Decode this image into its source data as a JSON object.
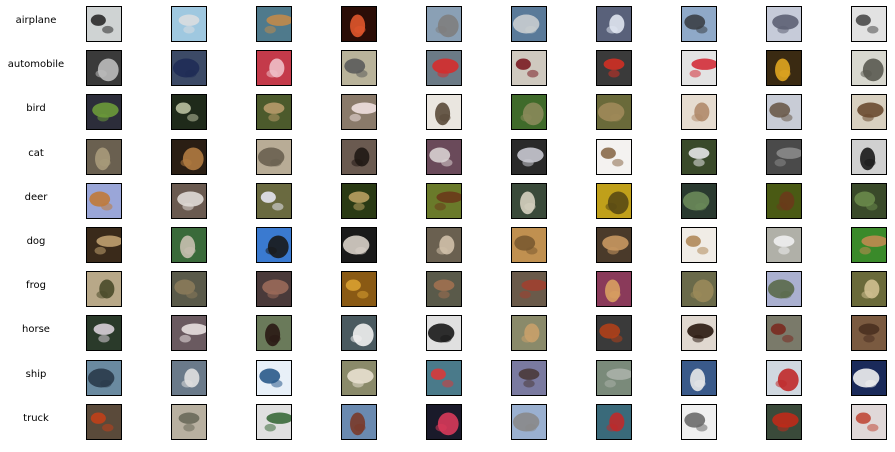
{
  "figure": {
    "classes": [
      {
        "label": "airplane",
        "palette": [
          [
            "#cfd3d3",
            "#2a2a2a"
          ],
          [
            "#9fc8e0",
            "#d9dde0"
          ],
          [
            "#4f7a8c",
            "#c08a4a"
          ],
          [
            "#2b0d07",
            "#e0562c"
          ],
          [
            "#8aa0b5",
            "#7e7e7e"
          ],
          [
            "#5a7a99",
            "#c9cdd0"
          ],
          [
            "#59617a",
            "#dfe6f0"
          ],
          [
            "#8fa9c8",
            "#3b3f46"
          ],
          [
            "#c6cbd9",
            "#5c6073"
          ],
          [
            "#e2e2e2",
            "#4a4a4a"
          ]
        ]
      },
      {
        "label": "automobile",
        "palette": [
          [
            "#3a3a3a",
            "#bdbdbd"
          ],
          [
            "#3c4a66",
            "#1f2c56"
          ],
          [
            "#c43a4a",
            "#f0c0c8"
          ],
          [
            "#b9b39a",
            "#5b5b5b"
          ],
          [
            "#6b7a86",
            "#d62c2c"
          ],
          [
            "#cfc9bf",
            "#7a1c24"
          ],
          [
            "#3a3a3a",
            "#d03025"
          ],
          [
            "#e3e3e3",
            "#d32e38"
          ],
          [
            "#3a2a12",
            "#e0a520"
          ],
          [
            "#d8d8cf",
            "#5a5a50"
          ]
        ]
      },
      {
        "label": "bird",
        "palette": [
          [
            "#2c2d3a",
            "#6b9a3a"
          ],
          [
            "#1f2a1a",
            "#b9c0a0"
          ],
          [
            "#4c5a2c",
            "#b89a6a"
          ],
          [
            "#8a7a6a",
            "#f0e0e0"
          ],
          [
            "#eae6e0",
            "#5a4a3a"
          ],
          [
            "#3f6a2a",
            "#8a8a5a"
          ],
          [
            "#6a6a3a",
            "#a08a5a"
          ],
          [
            "#e6dcd0",
            "#b08a6a"
          ],
          [
            "#c8ccd6",
            "#6a5a4a"
          ],
          [
            "#d8d0c0",
            "#6a4a30"
          ]
        ]
      },
      {
        "label": "cat",
        "palette": [
          [
            "#6a6050",
            "#a89a7a"
          ],
          [
            "#2a1e14",
            "#b07a40"
          ],
          [
            "#b8ac96",
            "#6a6050"
          ],
          [
            "#6a5a50",
            "#201814"
          ],
          [
            "#6a4a5a",
            "#d8d0d0"
          ],
          [
            "#2a2a2a",
            "#c8c8d0"
          ],
          [
            "#f4f2f0",
            "#8a6a4a"
          ],
          [
            "#3a4a2a",
            "#e6e6e6"
          ],
          [
            "#4a4a4a",
            "#8a8a8a"
          ],
          [
            "#d0d0d0",
            "#1a1a1a"
          ]
        ]
      },
      {
        "label": "deer",
        "palette": [
          [
            "#9aa6d8",
            "#c07a3a"
          ],
          [
            "#6a5a50",
            "#e0dad6"
          ],
          [
            "#6a6a40",
            "#e6e6f0"
          ],
          [
            "#2a3a14",
            "#b8a060"
          ],
          [
            "#6a7a2a",
            "#6a3a1a"
          ],
          [
            "#3a4a3a",
            "#d6d0c0"
          ],
          [
            "#c0a01a",
            "#5a4a14"
          ],
          [
            "#2a3a30",
            "#6a8a5a"
          ],
          [
            "#4a5a14",
            "#6a3a1a"
          ],
          [
            "#3a4a2a",
            "#6a8a4a"
          ]
        ]
      },
      {
        "label": "dog",
        "palette": [
          [
            "#3a2a1a",
            "#c0a070"
          ],
          [
            "#3a6a3a",
            "#c8c0b0"
          ],
          [
            "#3a7ad0",
            "#1a1a1a"
          ],
          [
            "#1a1a1a",
            "#d8d0c8"
          ],
          [
            "#6a6050",
            "#d0c0a8"
          ],
          [
            "#c09050",
            "#7a5a30"
          ],
          [
            "#4a3a2a",
            "#c89860"
          ],
          [
            "#f0ece6",
            "#b08a5a"
          ],
          [
            "#b0b0a8",
            "#f0f0f0"
          ],
          [
            "#3a8a2a",
            "#c08a50"
          ]
        ]
      },
      {
        "label": "frog",
        "palette": [
          [
            "#b8a888",
            "#4a4a2a"
          ],
          [
            "#5a5a4a",
            "#8a7a5a"
          ],
          [
            "#4a3a3a",
            "#9a6a5a"
          ],
          [
            "#8a5a14",
            "#d8a030"
          ],
          [
            "#5a5a4a",
            "#a07050"
          ],
          [
            "#6a5a4a",
            "#a04030"
          ],
          [
            "#8a3a5a",
            "#d8a060"
          ],
          [
            "#6a6a4a",
            "#9a8a5a"
          ],
          [
            "#aab0d0",
            "#5a6a4a"
          ],
          [
            "#6a6a3a",
            "#d0c090"
          ]
        ]
      },
      {
        "label": "horse",
        "palette": [
          [
            "#2a3a2a",
            "#d8d0d8"
          ],
          [
            "#6a5a60",
            "#e8e0e0"
          ],
          [
            "#6a7a5a",
            "#2a1a14"
          ],
          [
            "#4a5a60",
            "#f0f0f0"
          ],
          [
            "#e0e0e0",
            "#1a1a1a"
          ],
          [
            "#8a8a6a",
            "#c8a06a"
          ],
          [
            "#3a3a3a",
            "#b0401a"
          ],
          [
            "#e0d8d0",
            "#2a1a10"
          ],
          [
            "#7a7a6a",
            "#7a2a20"
          ],
          [
            "#7a5a40",
            "#4a3020"
          ]
        ]
      },
      {
        "label": "ship",
        "palette": [
          [
            "#6a8aa0",
            "#2a3a4a"
          ],
          [
            "#6a7a8a",
            "#e0e0e0"
          ],
          [
            "#e8f0f8",
            "#2a5a8a"
          ],
          [
            "#8a8a6a",
            "#e8e0d0"
          ],
          [
            "#4a7a8a",
            "#d83a3a"
          ],
          [
            "#7a7aa0",
            "#4a3a3a"
          ],
          [
            "#7a8a7a",
            "#aab0a8"
          ],
          [
            "#3a5a8a",
            "#e8e8e8"
          ],
          [
            "#d0d8e0",
            "#c02a2a"
          ],
          [
            "#1a2a5a",
            "#f0f0f0"
          ]
        ]
      },
      {
        "label": "truck",
        "palette": [
          [
            "#5a4a3a",
            "#c0401a"
          ],
          [
            "#b8b0a0",
            "#6a6a5a"
          ],
          [
            "#e0e0e0",
            "#3a6a3a"
          ],
          [
            "#6a8ab0",
            "#7a3a2a"
          ],
          [
            "#1a1a2a",
            "#d83a5a"
          ],
          [
            "#9ab0d0",
            "#8a8a8a"
          ],
          [
            "#3a6a7a",
            "#c02a2a"
          ],
          [
            "#f0f0f0",
            "#6a6a6a"
          ],
          [
            "#3a4a3a",
            "#c02a1a"
          ],
          [
            "#e0d8d8",
            "#c04a3a"
          ]
        ]
      }
    ]
  }
}
